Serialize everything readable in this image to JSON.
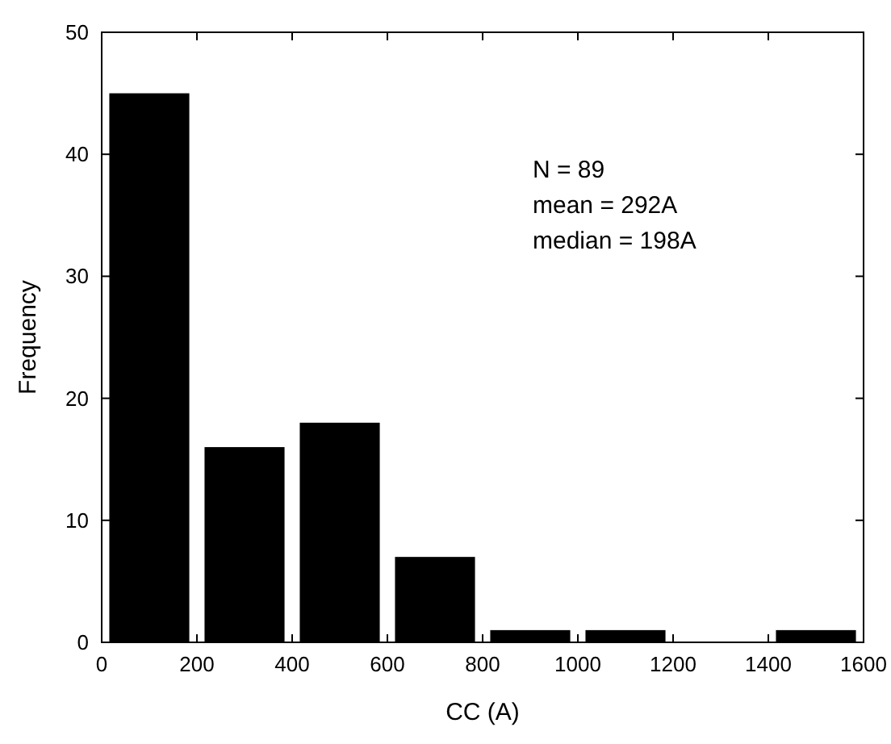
{
  "chart_data": {
    "type": "histogram",
    "xlabel": "CC (A)",
    "ylabel": "Frequency",
    "bins": [
      0,
      200,
      400,
      600,
      800,
      1000,
      1200,
      1400,
      1600
    ],
    "values": [
      45,
      16,
      18,
      7,
      1,
      1,
      0,
      1
    ],
    "color": "#000000",
    "xlim": [
      0,
      1600
    ],
    "xticks": [
      0,
      200,
      400,
      600,
      800,
      1000,
      1200,
      1400,
      1600
    ],
    "ylim": [
      0,
      50
    ],
    "yticks": [
      0,
      10,
      20,
      30,
      40,
      50
    ],
    "grid": false,
    "annotations": [
      "N = 89",
      "mean = 292A",
      "median = 198A"
    ]
  }
}
